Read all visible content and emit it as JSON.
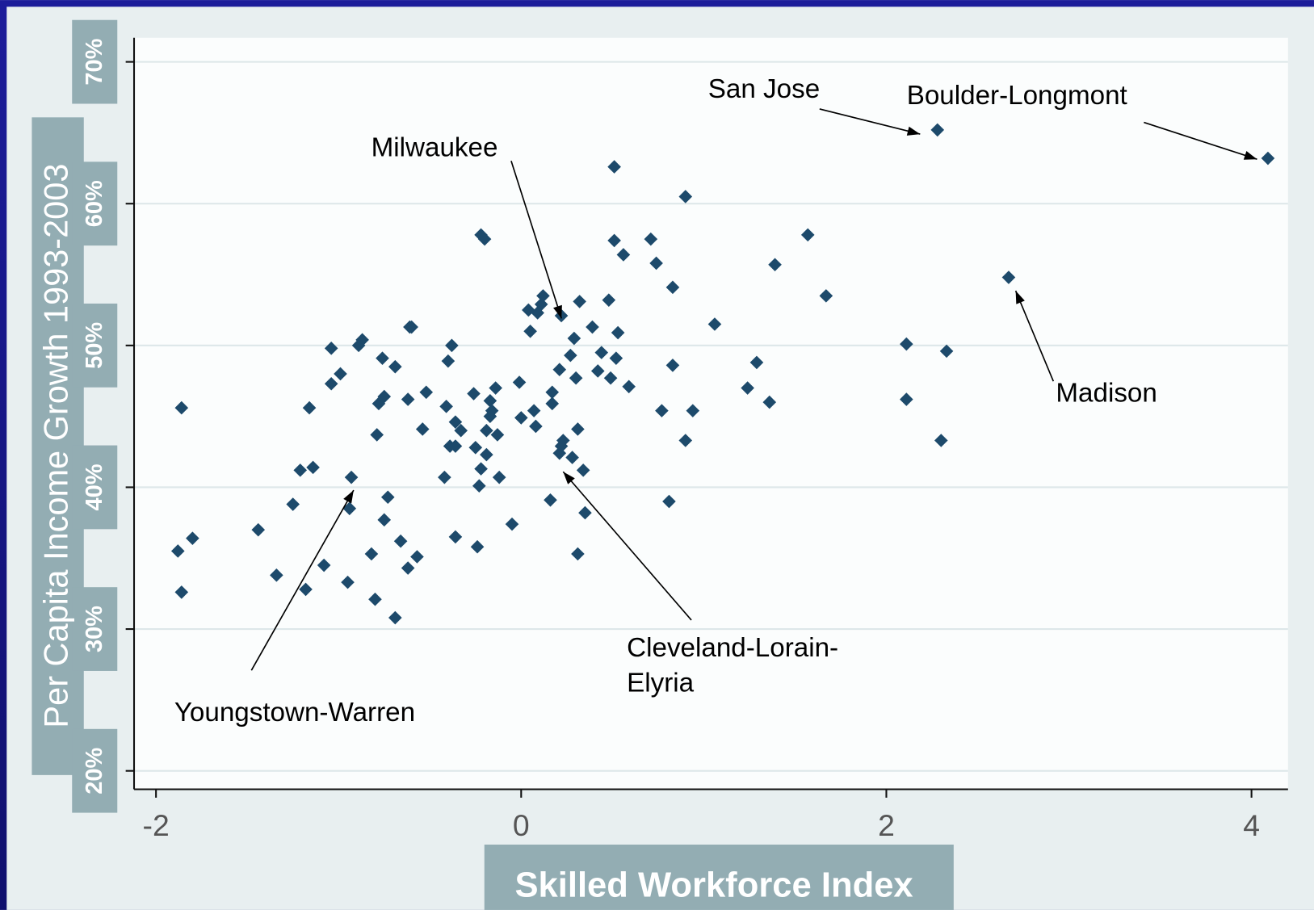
{
  "chart_data": {
    "type": "scatter",
    "xlabel": "Skilled Workforce Index",
    "ylabel": "Per Capita Income Growth 1993-2003",
    "color": "#1d4a6b",
    "grid": true,
    "xlim": [
      -2.12,
      4.2
    ],
    "ylim": [
      18.7,
      71.7
    ],
    "xticks": [
      -2,
      0,
      2,
      4
    ],
    "yticks": [
      {
        "value": 20,
        "label": "20%"
      },
      {
        "value": 30,
        "label": "30%"
      },
      {
        "value": 40,
        "label": "40%"
      },
      {
        "value": 50,
        "label": "50%"
      },
      {
        "value": 60,
        "label": "60%"
      },
      {
        "value": 70,
        "label": "70%"
      }
    ],
    "x": [
      -1.86,
      -1.88,
      -1.86,
      -1.8,
      -1.44,
      -1.34,
      -1.25,
      -1.21,
      -1.18,
      -1.16,
      -1.14,
      -1.08,
      -1.04,
      -1.04,
      -0.99,
      -0.95,
      -0.94,
      -0.93,
      -0.89,
      -0.87,
      -0.8,
      -0.82,
      -0.79,
      -0.78,
      -0.76,
      -0.75,
      -0.75,
      -0.73,
      -0.69,
      -0.69,
      -0.66,
      -0.62,
      -0.62,
      -0.61,
      -0.6,
      -0.57,
      -0.54,
      -0.52,
      -0.42,
      -0.41,
      -0.4,
      -0.39,
      -0.38,
      -0.36,
      -0.36,
      -0.36,
      -0.33,
      -0.26,
      -0.25,
      -0.24,
      -0.23,
      -0.22,
      -0.22,
      -0.2,
      -0.19,
      -0.19,
      -0.17,
      -0.17,
      -0.16,
      -0.14,
      -0.13,
      -0.12,
      -0.05,
      -0.01,
      0.0,
      0.04,
      0.05,
      0.07,
      0.08,
      0.09,
      0.11,
      0.12,
      0.16,
      0.17,
      0.17,
      0.21,
      0.21,
      0.22,
      0.23,
      0.22,
      0.27,
      0.28,
      0.29,
      0.3,
      0.31,
      0.31,
      0.32,
      0.34,
      0.35,
      0.39,
      0.42,
      0.44,
      0.48,
      0.49,
      0.51,
      0.51,
      0.52,
      0.53,
      0.56,
      0.59,
      0.71,
      0.74,
      0.77,
      0.81,
      0.83,
      0.83,
      0.9,
      0.9,
      0.94,
      1.06,
      1.24,
      1.29,
      1.36,
      1.39,
      1.57,
      1.67,
      2.11,
      2.11,
      2.28,
      2.3,
      2.33,
      2.67,
      4.09
    ],
    "values": [
      45.6,
      35.5,
      32.6,
      36.4,
      37.0,
      33.8,
      38.8,
      41.2,
      32.8,
      45.6,
      41.4,
      34.5,
      49.8,
      47.3,
      48.0,
      33.3,
      38.5,
      40.7,
      50.0,
      50.4,
      32.1,
      35.3,
      43.7,
      45.9,
      49.1,
      37.7,
      46.4,
      39.3,
      48.5,
      30.8,
      36.2,
      46.2,
      34.3,
      51.3,
      51.3,
      35.1,
      44.1,
      46.7,
      40.7,
      45.7,
      48.9,
      42.9,
      50.0,
      36.5,
      42.9,
      44.6,
      44.0,
      46.6,
      42.8,
      35.8,
      40.1,
      41.3,
      57.8,
      57.5,
      44.0,
      42.3,
      46.1,
      45.0,
      45.4,
      47.0,
      43.7,
      40.7,
      37.4,
      47.4,
      44.9,
      52.5,
      51.0,
      45.4,
      44.3,
      52.3,
      52.9,
      53.5,
      39.1,
      46.7,
      45.9,
      48.3,
      42.4,
      42.9,
      43.3,
      52.1,
      49.3,
      42.1,
      50.5,
      47.7,
      44.1,
      35.3,
      53.1,
      41.2,
      38.2,
      51.3,
      48.2,
      49.5,
      53.2,
      47.7,
      62.6,
      57.4,
      49.1,
      50.9,
      56.4,
      47.1,
      57.5,
      55.8,
      45.4,
      39.0,
      48.6,
      54.1,
      60.5,
      43.3,
      45.4,
      51.5,
      47.0,
      48.8,
      46.0,
      55.7,
      57.8,
      53.5,
      50.1,
      46.2,
      65.2,
      43.3,
      49.6,
      54.8,
      63.2
    ],
    "annotations": [
      [
        "San Jose"
      ],
      [
        "Boulder-Longmont"
      ],
      [
        "Milwaukee"
      ],
      [
        "Madison"
      ],
      [
        "Cleveland-Lorain-",
        "Elyria"
      ],
      [
        "Youngstown-Warren"
      ]
    ]
  }
}
